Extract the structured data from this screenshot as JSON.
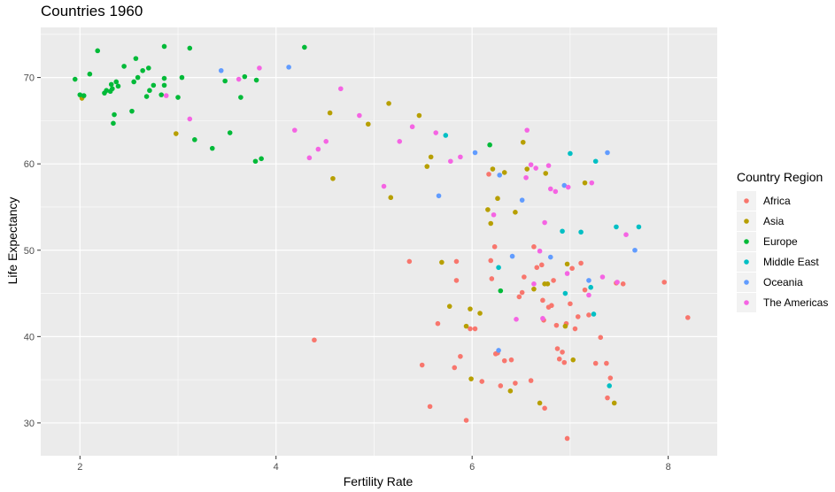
{
  "chart_data": {
    "type": "scatter",
    "title": "Countries 1960",
    "xlabel": "Fertility Rate",
    "ylabel": "Life Expectancy",
    "xlim": [
      1.6,
      8.5
    ],
    "ylim": [
      26.2,
      75.8
    ],
    "x_ticks": [
      2,
      4,
      6,
      8
    ],
    "y_ticks": [
      30,
      40,
      50,
      60,
      70
    ],
    "grid": true,
    "legend": {
      "title": "Country Region",
      "position": "right"
    },
    "series": [
      {
        "name": "Africa",
        "color": "#F8766D",
        "points": [
          [
            4.39,
            39.6
          ],
          [
            5.49,
            36.7
          ],
          [
            5.57,
            31.9
          ],
          [
            5.65,
            41.5
          ],
          [
            5.82,
            36.4
          ],
          [
            5.88,
            37.7
          ],
          [
            5.94,
            30.3
          ],
          [
            5.98,
            40.9
          ],
          [
            5.84,
            48.7
          ],
          [
            5.84,
            46.5
          ],
          [
            6.1,
            34.8
          ],
          [
            6.17,
            58.8
          ],
          [
            6.19,
            48.8
          ],
          [
            6.2,
            46.7
          ],
          [
            6.23,
            50.4
          ],
          [
            6.24,
            38.0
          ],
          [
            6.26,
            38.1
          ],
          [
            6.29,
            34.3
          ],
          [
            6.33,
            37.2
          ],
          [
            6.4,
            37.3
          ],
          [
            6.44,
            34.6
          ],
          [
            6.48,
            44.6
          ],
          [
            6.51,
            45.1
          ],
          [
            6.53,
            46.9
          ],
          [
            6.6,
            34.9
          ],
          [
            6.63,
            50.4
          ],
          [
            6.66,
            48.0
          ],
          [
            6.71,
            48.3
          ],
          [
            6.72,
            44.2
          ],
          [
            6.74,
            31.7
          ],
          [
            6.73,
            41.9
          ],
          [
            6.78,
            43.4
          ],
          [
            6.81,
            43.6
          ],
          [
            6.83,
            46.5
          ],
          [
            6.86,
            41.3
          ],
          [
            6.87,
            38.6
          ],
          [
            6.89,
            37.4
          ],
          [
            6.92,
            38.2
          ],
          [
            6.94,
            37.0
          ],
          [
            6.96,
            41.5
          ],
          [
            6.97,
            28.2
          ],
          [
            7.0,
            43.8
          ],
          [
            7.02,
            47.9
          ],
          [
            7.05,
            40.9
          ],
          [
            7.08,
            42.3
          ],
          [
            7.11,
            48.5
          ],
          [
            7.15,
            45.4
          ],
          [
            7.19,
            42.5
          ],
          [
            7.26,
            36.9
          ],
          [
            7.31,
            39.9
          ],
          [
            7.37,
            36.9
          ],
          [
            7.38,
            32.9
          ],
          [
            7.41,
            35.2
          ],
          [
            7.47,
            46.2
          ],
          [
            7.54,
            46.1
          ],
          [
            7.96,
            46.3
          ],
          [
            8.2,
            42.2
          ],
          [
            5.36,
            48.7
          ],
          [
            6.03,
            40.9
          ]
        ]
      },
      {
        "name": "Asia",
        "color": "#B79F00",
        "points": [
          [
            2.02,
            67.6
          ],
          [
            2.98,
            63.5
          ],
          [
            4.55,
            65.9
          ],
          [
            4.58,
            58.3
          ],
          [
            4.94,
            64.6
          ],
          [
            5.15,
            67.0
          ],
          [
            5.17,
            56.1
          ],
          [
            5.46,
            65.6
          ],
          [
            5.54,
            59.7
          ],
          [
            5.58,
            60.8
          ],
          [
            5.69,
            48.6
          ],
          [
            5.77,
            43.5
          ],
          [
            5.94,
            41.2
          ],
          [
            5.98,
            43.2
          ],
          [
            5.99,
            35.1
          ],
          [
            6.08,
            42.7
          ],
          [
            6.16,
            54.7
          ],
          [
            6.19,
            53.1
          ],
          [
            6.21,
            59.4
          ],
          [
            6.26,
            56.0
          ],
          [
            6.33,
            59.0
          ],
          [
            6.39,
            33.7
          ],
          [
            6.44,
            54.4
          ],
          [
            6.52,
            62.5
          ],
          [
            6.56,
            59.4
          ],
          [
            6.63,
            45.5
          ],
          [
            6.69,
            32.3
          ],
          [
            6.74,
            46.1
          ],
          [
            6.75,
            58.9
          ],
          [
            6.77,
            46.1
          ],
          [
            6.95,
            41.2
          ],
          [
            6.97,
            48.4
          ],
          [
            7.03,
            37.3
          ],
          [
            7.15,
            57.8
          ],
          [
            7.45,
            32.3
          ]
        ]
      },
      {
        "name": "Europe",
        "color": "#00BA38",
        "points": [
          [
            1.95,
            69.8
          ],
          [
            2.0,
            68.0
          ],
          [
            2.04,
            67.9
          ],
          [
            2.1,
            70.4
          ],
          [
            2.18,
            73.1
          ],
          [
            2.25,
            68.2
          ],
          [
            2.27,
            68.5
          ],
          [
            2.31,
            68.4
          ],
          [
            2.32,
            69.2
          ],
          [
            2.33,
            68.7
          ],
          [
            2.35,
            65.7
          ],
          [
            2.34,
            64.7
          ],
          [
            2.37,
            69.5
          ],
          [
            2.39,
            69.0
          ],
          [
            2.45,
            71.3
          ],
          [
            2.53,
            66.1
          ],
          [
            2.55,
            69.5
          ],
          [
            2.57,
            72.2
          ],
          [
            2.59,
            70.0
          ],
          [
            2.64,
            70.8
          ],
          [
            2.68,
            67.8
          ],
          [
            2.7,
            71.1
          ],
          [
            2.71,
            68.5
          ],
          [
            2.75,
            69.1
          ],
          [
            2.83,
            68.0
          ],
          [
            2.86,
            73.6
          ],
          [
            2.86,
            69.9
          ],
          [
            2.86,
            69.1
          ],
          [
            3.0,
            67.7
          ],
          [
            3.04,
            70.0
          ],
          [
            3.12,
            73.4
          ],
          [
            3.17,
            62.8
          ],
          [
            3.35,
            61.8
          ],
          [
            3.48,
            69.6
          ],
          [
            3.53,
            63.6
          ],
          [
            3.64,
            67.7
          ],
          [
            3.68,
            70.1
          ],
          [
            3.79,
            60.3
          ],
          [
            3.8,
            69.7
          ],
          [
            3.85,
            60.6
          ],
          [
            4.29,
            73.5
          ],
          [
            6.18,
            62.2
          ],
          [
            6.29,
            45.3
          ]
        ]
      },
      {
        "name": "Middle East",
        "color": "#00BFC4",
        "points": [
          [
            5.73,
            63.3
          ],
          [
            6.27,
            48.0
          ],
          [
            6.92,
            52.2
          ],
          [
            6.95,
            45.0
          ],
          [
            7.0,
            61.2
          ],
          [
            7.11,
            52.1
          ],
          [
            7.21,
            45.7
          ],
          [
            7.24,
            42.6
          ],
          [
            7.26,
            60.3
          ],
          [
            7.4,
            34.3
          ],
          [
            7.47,
            52.7
          ],
          [
            7.7,
            52.7
          ]
        ]
      },
      {
        "name": "Oceania",
        "color": "#619CFF",
        "points": [
          [
            3.44,
            70.8
          ],
          [
            4.13,
            71.2
          ],
          [
            5.66,
            56.3
          ],
          [
            6.03,
            61.3
          ],
          [
            6.28,
            58.7
          ],
          [
            6.27,
            38.4
          ],
          [
            6.41,
            49.3
          ],
          [
            6.51,
            55.8
          ],
          [
            6.8,
            49.2
          ],
          [
            6.94,
            57.5
          ],
          [
            7.19,
            46.5
          ],
          [
            7.38,
            61.3
          ],
          [
            7.66,
            50.0
          ]
        ]
      },
      {
        "name": "The Americas",
        "color": "#F564E3",
        "points": [
          [
            2.88,
            67.9
          ],
          [
            3.12,
            65.2
          ],
          [
            3.62,
            69.8
          ],
          [
            3.83,
            71.1
          ],
          [
            4.19,
            63.9
          ],
          [
            4.34,
            60.7
          ],
          [
            4.43,
            61.7
          ],
          [
            4.51,
            62.6
          ],
          [
            4.66,
            68.7
          ],
          [
            4.85,
            65.6
          ],
          [
            5.1,
            57.4
          ],
          [
            5.26,
            62.6
          ],
          [
            5.39,
            64.3
          ],
          [
            5.63,
            63.6
          ],
          [
            5.78,
            60.3
          ],
          [
            5.88,
            60.8
          ],
          [
            6.22,
            54.1
          ],
          [
            6.45,
            42.0
          ],
          [
            6.55,
            58.4
          ],
          [
            6.56,
            63.9
          ],
          [
            6.6,
            59.9
          ],
          [
            6.63,
            46.1
          ],
          [
            6.65,
            59.5
          ],
          [
            6.69,
            49.9
          ],
          [
            6.72,
            42.1
          ],
          [
            6.74,
            53.2
          ],
          [
            6.78,
            59.8
          ],
          [
            6.8,
            57.1
          ],
          [
            6.85,
            56.8
          ],
          [
            6.98,
            57.3
          ],
          [
            6.97,
            47.3
          ],
          [
            7.19,
            44.8
          ],
          [
            7.22,
            57.8
          ],
          [
            7.33,
            46.9
          ],
          [
            7.48,
            46.3
          ],
          [
            7.57,
            51.8
          ]
        ]
      }
    ]
  }
}
